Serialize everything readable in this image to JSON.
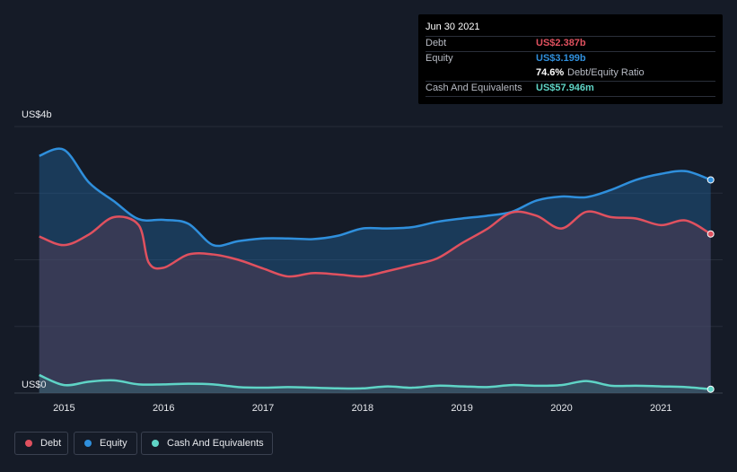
{
  "chart_data": {
    "type": "area",
    "y_unit_top": "US$4b",
    "y_unit_bottom": "US$0",
    "ylim": [
      0,
      4.0
    ],
    "x_range": [
      2014.5,
      2021.62
    ],
    "xticks": [
      "2015",
      "2016",
      "2017",
      "2018",
      "2019",
      "2020",
      "2021"
    ],
    "series": [
      {
        "name": "Debt",
        "color": "#e0515f",
        "points": [
          [
            2014.75,
            2.35
          ],
          [
            2015.0,
            2.22
          ],
          [
            2015.25,
            2.38
          ],
          [
            2015.5,
            2.64
          ],
          [
            2015.75,
            2.52
          ],
          [
            2015.85,
            1.96
          ],
          [
            2016.0,
            1.88
          ],
          [
            2016.25,
            2.08
          ],
          [
            2016.5,
            2.08
          ],
          [
            2016.75,
            2.0
          ],
          [
            2017.0,
            1.87
          ],
          [
            2017.25,
            1.75
          ],
          [
            2017.5,
            1.8
          ],
          [
            2017.75,
            1.78
          ],
          [
            2018.0,
            1.75
          ],
          [
            2018.25,
            1.83
          ],
          [
            2018.5,
            1.92
          ],
          [
            2018.75,
            2.02
          ],
          [
            2019.0,
            2.25
          ],
          [
            2019.25,
            2.46
          ],
          [
            2019.5,
            2.71
          ],
          [
            2019.75,
            2.66
          ],
          [
            2020.0,
            2.47
          ],
          [
            2020.25,
            2.72
          ],
          [
            2020.5,
            2.64
          ],
          [
            2020.75,
            2.62
          ],
          [
            2021.0,
            2.52
          ],
          [
            2021.25,
            2.59
          ],
          [
            2021.5,
            2.387
          ]
        ]
      },
      {
        "name": "Equity",
        "color": "#2f8fdc",
        "points": [
          [
            2014.75,
            3.56
          ],
          [
            2015.0,
            3.65
          ],
          [
            2015.25,
            3.16
          ],
          [
            2015.5,
            2.88
          ],
          [
            2015.75,
            2.61
          ],
          [
            2016.0,
            2.6
          ],
          [
            2016.25,
            2.54
          ],
          [
            2016.5,
            2.22
          ],
          [
            2016.75,
            2.28
          ],
          [
            2017.0,
            2.32
          ],
          [
            2017.25,
            2.32
          ],
          [
            2017.5,
            2.31
          ],
          [
            2017.75,
            2.36
          ],
          [
            2018.0,
            2.47
          ],
          [
            2018.25,
            2.47
          ],
          [
            2018.5,
            2.49
          ],
          [
            2018.75,
            2.57
          ],
          [
            2019.0,
            2.62
          ],
          [
            2019.25,
            2.66
          ],
          [
            2019.5,
            2.72
          ],
          [
            2019.75,
            2.89
          ],
          [
            2020.0,
            2.95
          ],
          [
            2020.25,
            2.94
          ],
          [
            2020.5,
            3.05
          ],
          [
            2020.75,
            3.2
          ],
          [
            2021.0,
            3.29
          ],
          [
            2021.25,
            3.33
          ],
          [
            2021.5,
            3.199
          ]
        ]
      },
      {
        "name": "Cash And Equivalents",
        "color": "#5fd4c6",
        "points": [
          [
            2014.75,
            0.27
          ],
          [
            2015.0,
            0.12
          ],
          [
            2015.25,
            0.17
          ],
          [
            2015.5,
            0.19
          ],
          [
            2015.75,
            0.13
          ],
          [
            2016.0,
            0.13
          ],
          [
            2016.25,
            0.14
          ],
          [
            2016.5,
            0.13
          ],
          [
            2016.75,
            0.09
          ],
          [
            2017.0,
            0.08
          ],
          [
            2017.25,
            0.09
          ],
          [
            2017.5,
            0.08
          ],
          [
            2017.75,
            0.07
          ],
          [
            2018.0,
            0.07
          ],
          [
            2018.25,
            0.1
          ],
          [
            2018.5,
            0.08
          ],
          [
            2018.75,
            0.11
          ],
          [
            2019.0,
            0.1
          ],
          [
            2019.25,
            0.09
          ],
          [
            2019.5,
            0.12
          ],
          [
            2019.75,
            0.11
          ],
          [
            2020.0,
            0.12
          ],
          [
            2020.25,
            0.18
          ],
          [
            2020.5,
            0.11
          ],
          [
            2020.75,
            0.11
          ],
          [
            2021.0,
            0.1
          ],
          [
            2021.25,
            0.09
          ],
          [
            2021.5,
            0.058
          ]
        ]
      }
    ]
  },
  "tooltip": {
    "date": "Jun 30 2021",
    "debt_label": "Debt",
    "debt_value": "US$2.387b",
    "equity_label": "Equity",
    "equity_value": "US$3.199b",
    "ratio_value": "74.6%",
    "ratio_label": "Debt/Equity Ratio",
    "cash_label": "Cash And Equivalents",
    "cash_value": "US$57.946m",
    "colors": {
      "debt": "#e0515f",
      "equity": "#2f8fdc",
      "cash": "#5fd4c6"
    }
  },
  "legend": {
    "debt": "Debt",
    "equity": "Equity",
    "cash": "Cash And Equivalents"
  }
}
